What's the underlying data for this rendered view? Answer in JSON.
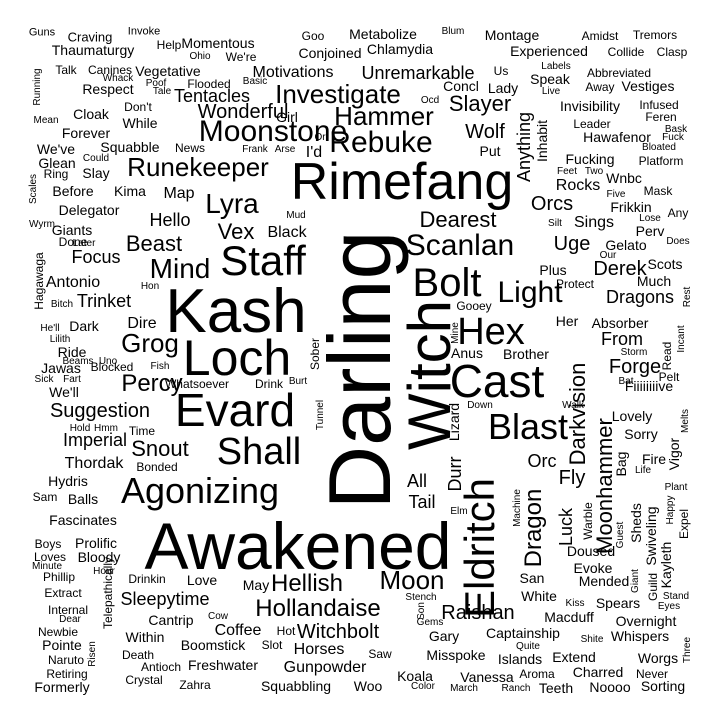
{
  "words": [
    {
      "text": "Awakened",
      "vertical": false
    },
    {
      "text": "Darling",
      "vertical": true
    },
    {
      "text": "Kash",
      "vertical": false
    },
    {
      "text": "Loch",
      "vertical": false
    },
    {
      "text": "Rimefang",
      "vertical": false
    },
    {
      "text": "Witch",
      "vertical": true
    },
    {
      "text": "Evard",
      "vertical": false
    },
    {
      "text": "Cast",
      "vertical": false
    },
    {
      "text": "Eldritch",
      "vertical": true
    },
    {
      "text": "Bolt",
      "vertical": false
    },
    {
      "text": "Staff",
      "vertical": false
    },
    {
      "text": "Shall",
      "vertical": false
    },
    {
      "text": "Hex",
      "vertical": false
    },
    {
      "text": "Agonizing",
      "vertical": false
    },
    {
      "text": "Blast",
      "vertical": false
    },
    {
      "text": "Rebuke",
      "vertical": false
    },
    {
      "text": "Scanlan",
      "vertical": false
    },
    {
      "text": "Moonstone",
      "vertical": false
    },
    {
      "text": "Hammer",
      "vertical": false
    },
    {
      "text": "Investigate",
      "vertical": false
    },
    {
      "text": "Mind",
      "vertical": false
    },
    {
      "text": "Lyra",
      "vertical": false
    },
    {
      "text": "Light",
      "vertical": false
    },
    {
      "text": "Runekeeper",
      "vertical": false
    },
    {
      "text": "Moon",
      "vertical": false
    },
    {
      "text": "Hellish",
      "vertical": false
    },
    {
      "text": "Hollandaise",
      "vertical": false
    },
    {
      "text": "Grog",
      "vertical": false
    },
    {
      "text": "Percy",
      "vertical": false
    },
    {
      "text": "Moonhammer",
      "vertical": true
    },
    {
      "text": "Dragon",
      "vertical": true
    },
    {
      "text": "Darkvision",
      "vertical": true
    },
    {
      "text": "Dearest",
      "vertical": false
    },
    {
      "text": "Beast",
      "vertical": false
    },
    {
      "text": "Vex",
      "vertical": false
    },
    {
      "text": "Snout",
      "vertical": false
    },
    {
      "text": "Suggestion",
      "vertical": false
    },
    {
      "text": "Wonderful",
      "vertical": false
    },
    {
      "text": "Slayer",
      "vertical": false
    },
    {
      "text": "Wolf",
      "vertical": false
    },
    {
      "text": "Derek",
      "vertical": false
    },
    {
      "text": "Uge",
      "vertical": false
    },
    {
      "text": "Forge",
      "vertical": false
    },
    {
      "text": "Fly",
      "vertical": false
    },
    {
      "text": "Orcs",
      "vertical": false
    },
    {
      "text": "Orc",
      "vertical": false
    },
    {
      "text": "Dragons",
      "vertical": false
    },
    {
      "text": "From",
      "vertical": false
    },
    {
      "text": "Witchbolt",
      "vertical": false
    },
    {
      "text": "Raishan",
      "vertical": false
    },
    {
      "text": "Sleepytime",
      "vertical": false
    },
    {
      "text": "Imperial",
      "vertical": false
    },
    {
      "text": "Thordak",
      "vertical": false
    },
    {
      "text": "Trinket",
      "vertical": false
    },
    {
      "text": "Focus",
      "vertical": false
    },
    {
      "text": "Hello",
      "vertical": false
    },
    {
      "text": "Unremarkable",
      "vertical": false
    },
    {
      "text": "Tentacles",
      "vertical": false
    },
    {
      "text": "Motivations",
      "vertical": false
    },
    {
      "text": "Anything",
      "vertical": true
    },
    {
      "text": "Luck",
      "vertical": true
    },
    {
      "text": "Durr",
      "vertical": true
    },
    {
      "text": "Tail",
      "vertical": false
    },
    {
      "text": "All",
      "vertical": false
    },
    {
      "text": "Hydris",
      "vertical": false
    },
    {
      "text": "Antonio",
      "vertical": false
    },
    {
      "text": "Giants",
      "vertical": false
    },
    {
      "text": "Dire",
      "vertical": false
    },
    {
      "text": "Black",
      "vertical": false
    },
    {
      "text": "Map",
      "vertical": false
    },
    {
      "text": "Kima",
      "vertical": false
    },
    {
      "text": "Delegator",
      "vertical": false
    },
    {
      "text": "Squabble",
      "vertical": false
    },
    {
      "text": "Cloak",
      "vertical": false
    },
    {
      "text": "Forever",
      "vertical": false
    },
    {
      "text": "Vegetative",
      "vertical": false
    },
    {
      "text": "Respect",
      "vertical": false
    },
    {
      "text": "Momentous",
      "vertical": false
    },
    {
      "text": "Conjoined",
      "vertical": false
    },
    {
      "text": "Chlamydia",
      "vertical": false
    },
    {
      "text": "Metabolize",
      "vertical": false
    },
    {
      "text": "Montage",
      "vertical": false
    },
    {
      "text": "Experienced",
      "vertical": false
    },
    {
      "text": "Thaumaturgy",
      "vertical": false
    },
    {
      "text": "Craving",
      "vertical": false
    },
    {
      "text": "Invoke",
      "vertical": false
    },
    {
      "text": "Help",
      "vertical": false
    },
    {
      "text": "Goo",
      "vertical": false
    },
    {
      "text": "Blum",
      "vertical": false
    },
    {
      "text": "Amidst",
      "vertical": false
    },
    {
      "text": "Tremors",
      "vertical": false
    },
    {
      "text": "Guns",
      "vertical": false
    },
    {
      "text": "Collide",
      "vertical": false
    },
    {
      "text": "Clasp",
      "vertical": false
    },
    {
      "text": "Speak",
      "vertical": false
    },
    {
      "text": "Abbreviated",
      "vertical": false
    },
    {
      "text": "Away",
      "vertical": false
    },
    {
      "text": "Vestiges",
      "vertical": false
    },
    {
      "text": "Invisibility",
      "vertical": false
    },
    {
      "text": "Infused",
      "vertical": false
    },
    {
      "text": "Leader",
      "vertical": false
    },
    {
      "text": "Feren",
      "vertical": false
    },
    {
      "text": "Hawafenor",
      "vertical": false
    },
    {
      "text": "Bask",
      "vertical": false
    },
    {
      "text": "Fucking",
      "vertical": false
    },
    {
      "text": "Wnbc",
      "vertical": false
    },
    {
      "text": "Platform",
      "vertical": false
    },
    {
      "text": "Bloated",
      "vertical": false
    },
    {
      "text": "Rocks",
      "vertical": false
    },
    {
      "text": "Mask",
      "vertical": false
    },
    {
      "text": "Frikkin",
      "vertical": false
    },
    {
      "text": "Sings",
      "vertical": false
    },
    {
      "text": "Perv",
      "vertical": false
    },
    {
      "text": "Gelato",
      "vertical": false
    },
    {
      "text": "Scots",
      "vertical": false
    },
    {
      "text": "Much",
      "vertical": false
    },
    {
      "text": "Absorber",
      "vertical": false
    },
    {
      "text": "Fiiiiiiiive",
      "vertical": false
    },
    {
      "text": "Lovely",
      "vertical": false
    },
    {
      "text": "Sorry",
      "vertical": false
    },
    {
      "text": "Fire",
      "vertical": false
    },
    {
      "text": "Plant",
      "vertical": false
    },
    {
      "text": "Vigor",
      "vertical": true
    },
    {
      "text": "Bag",
      "vertical": true
    },
    {
      "text": "Sheds",
      "vertical": true
    },
    {
      "text": "Swiveling",
      "vertical": true
    },
    {
      "text": "Kayleth",
      "vertical": true
    },
    {
      "text": "Expel",
      "vertical": true
    },
    {
      "text": "Guild",
      "vertical": true
    },
    {
      "text": "Doused",
      "vertical": false
    },
    {
      "text": "Evoke",
      "vertical": false
    },
    {
      "text": "Mended",
      "vertical": false
    },
    {
      "text": "Spears",
      "vertical": false
    },
    {
      "text": "Overnight",
      "vertical": false
    },
    {
      "text": "Whispers",
      "vertical": false
    },
    {
      "text": "Worgs",
      "vertical": false
    },
    {
      "text": "Never",
      "vertical": false
    },
    {
      "text": "Sorting",
      "vertical": false
    },
    {
      "text": "Noooo",
      "vertical": false
    },
    {
      "text": "Teeth",
      "vertical": false
    },
    {
      "text": "Charred",
      "vertical": false
    },
    {
      "text": "Extend",
      "vertical": false
    },
    {
      "text": "Aroma",
      "vertical": false
    },
    {
      "text": "Islands",
      "vertical": false
    },
    {
      "text": "Captainship",
      "vertical": false
    },
    {
      "text": "Macduff",
      "vertical": false
    },
    {
      "text": "White",
      "vertical": false
    },
    {
      "text": "San",
      "vertical": false
    },
    {
      "text": "Gary",
      "vertical": false
    },
    {
      "text": "Misspoke",
      "vertical": false
    },
    {
      "text": "Vanessa",
      "vertical": false
    },
    {
      "text": "Koala",
      "vertical": false
    },
    {
      "text": "Woo",
      "vertical": false
    },
    {
      "text": "Saw",
      "vertical": false
    },
    {
      "text": "Horses",
      "vertical": false
    },
    {
      "text": "Gunpowder",
      "vertical": false
    },
    {
      "text": "Squabbling",
      "vertical": false
    },
    {
      "text": "Freshwater",
      "vertical": false
    },
    {
      "text": "Boomstick",
      "vertical": false
    },
    {
      "text": "Coffee",
      "vertical": false
    },
    {
      "text": "Cantrip",
      "vertical": false
    },
    {
      "text": "Love",
      "vertical": false
    },
    {
      "text": "Drinkin",
      "vertical": false
    },
    {
      "text": "Within",
      "vertical": false
    },
    {
      "text": "Antioch",
      "vertical": false
    },
    {
      "text": "Crystal",
      "vertical": false
    },
    {
      "text": "Zahra",
      "vertical": false
    },
    {
      "text": "Death",
      "vertical": false
    },
    {
      "text": "Formerly",
      "vertical": false
    },
    {
      "text": "Naruto",
      "vertical": false
    },
    {
      "text": "Pointe",
      "vertical": false
    },
    {
      "text": "Newbie",
      "vertical": false
    },
    {
      "text": "Internal",
      "vertical": false
    },
    {
      "text": "Extract",
      "vertical": false
    },
    {
      "text": "Phillip",
      "vertical": false
    },
    {
      "text": "Loves",
      "vertical": false
    },
    {
      "text": "Bloody",
      "vertical": false
    },
    {
      "text": "Prolific",
      "vertical": false
    },
    {
      "text": "Fascinates",
      "vertical": false
    },
    {
      "text": "Balls",
      "vertical": false
    },
    {
      "text": "Bonded",
      "vertical": false
    },
    {
      "text": "Time",
      "vertical": false
    },
    {
      "text": "Whatsoever",
      "vertical": false
    },
    {
      "text": "Drink",
      "vertical": false
    },
    {
      "text": "Blocked",
      "vertical": false
    },
    {
      "text": "Jawas",
      "vertical": false
    },
    {
      "text": "We'll",
      "vertical": false
    },
    {
      "text": "Ride",
      "vertical": false
    },
    {
      "text": "Dark",
      "vertical": false
    },
    {
      "text": "Lilith",
      "vertical": false
    },
    {
      "text": "Hagawaga",
      "vertical": true
    },
    {
      "text": "Telepathically",
      "vertical": true
    },
    {
      "text": "Running",
      "vertical": true
    },
    {
      "text": "Talk",
      "vertical": false
    },
    {
      "text": "Canines",
      "vertical": false
    },
    {
      "text": "Mean",
      "vertical": false
    },
    {
      "text": "We've",
      "vertical": false
    },
    {
      "text": "Glean",
      "vertical": false
    },
    {
      "text": "Ring",
      "vertical": false
    },
    {
      "text": "Slay",
      "vertical": false
    },
    {
      "text": "Before",
      "vertical": false
    },
    {
      "text": "While",
      "vertical": false
    },
    {
      "text": "Don't",
      "vertical": false
    },
    {
      "text": "News",
      "vertical": false
    },
    {
      "text": "Girl",
      "vertical": false
    },
    {
      "text": "I'd",
      "vertical": false
    },
    {
      "text": "Put",
      "vertical": false
    },
    {
      "text": "Concl",
      "vertical": false
    },
    {
      "text": "Lady",
      "vertical": false
    },
    {
      "text": "Us",
      "vertical": false
    },
    {
      "text": "Live",
      "vertical": false
    },
    {
      "text": "Labels",
      "vertical": false
    },
    {
      "text": "Ocd",
      "vertical": false
    },
    {
      "text": "Inhabit",
      "vertical": true
    },
    {
      "text": "Plus",
      "vertical": false
    },
    {
      "text": "Protect",
      "vertical": false
    },
    {
      "text": "Gooey",
      "vertical": false
    },
    {
      "text": "Her",
      "vertical": false
    },
    {
      "text": "Anus",
      "vertical": false
    },
    {
      "text": "Brother",
      "vertical": false
    },
    {
      "text": "Walk",
      "vertical": false
    },
    {
      "text": "Down",
      "vertical": false
    },
    {
      "text": "Lizard",
      "vertical": true
    },
    {
      "text": "Mine",
      "vertical": true
    },
    {
      "text": "Sober",
      "vertical": true
    },
    {
      "text": "Tunnel",
      "vertical": true
    },
    {
      "text": "Machine",
      "vertical": true
    },
    {
      "text": "Warble",
      "vertical": true
    },
    {
      "text": "Storm",
      "vertical": false
    },
    {
      "text": "Read",
      "vertical": true
    },
    {
      "text": "Incant",
      "vertical": true
    },
    {
      "text": "Rest",
      "vertical": true
    },
    {
      "text": "Melts",
      "vertical": true
    },
    {
      "text": "Pelt",
      "vertical": false
    },
    {
      "text": "Bat",
      "vertical": false
    },
    {
      "text": "Happy",
      "vertical": true
    },
    {
      "text": "Life",
      "vertical": false
    },
    {
      "text": "Guest",
      "vertical": true
    },
    {
      "text": "Giant",
      "vertical": true
    },
    {
      "text": "Stand",
      "vertical": false
    },
    {
      "text": "Eyes",
      "vertical": false
    },
    {
      "text": "Three",
      "vertical": true
    },
    {
      "text": "Kiss",
      "vertical": false
    },
    {
      "text": "Shite",
      "vertical": false
    },
    {
      "text": "Quite",
      "vertical": false
    },
    {
      "text": "Stench",
      "vertical": false
    },
    {
      "text": "Gems",
      "vertical": false
    },
    {
      "text": "Son",
      "vertical": true
    },
    {
      "text": "Hot",
      "vertical": false
    },
    {
      "text": "Slot",
      "vertical": false
    },
    {
      "text": "Color",
      "vertical": false
    },
    {
      "text": "March",
      "vertical": false
    },
    {
      "text": "Ranch",
      "vertical": false
    },
    {
      "text": "Retiring",
      "vertical": false
    },
    {
      "text": "Risen",
      "vertical": true
    },
    {
      "text": "Dear",
      "vertical": false
    },
    {
      "text": "Cow",
      "vertical": false
    },
    {
      "text": "May",
      "vertical": false
    },
    {
      "text": "Hour",
      "vertical": false
    },
    {
      "text": "Minute",
      "vertical": false
    },
    {
      "text": "Boys",
      "vertical": false
    },
    {
      "text": "Sam",
      "vertical": false
    },
    {
      "text": "Hold",
      "vertical": false
    },
    {
      "text": "Hmm",
      "vertical": false
    },
    {
      "text": "Sick",
      "vertical": false
    },
    {
      "text": "Fart",
      "vertical": false
    },
    {
      "text": "Fish",
      "vertical": false
    },
    {
      "text": "Burt",
      "vertical": false
    },
    {
      "text": "He'll",
      "vertical": false
    },
    {
      "text": "Bitch",
      "vertical": false
    },
    {
      "text": "Hon",
      "vertical": false
    },
    {
      "text": "Later",
      "vertical": false
    },
    {
      "text": "Done",
      "vertical": false
    },
    {
      "text": "Wyrm",
      "vertical": false
    },
    {
      "text": "Scales",
      "vertical": true
    },
    {
      "text": "Could",
      "vertical": false
    },
    {
      "text": "Frank",
      "vertical": false
    },
    {
      "text": "Arse",
      "vertical": false
    },
    {
      "text": "Or",
      "vertical": false
    },
    {
      "text": "Mud",
      "vertical": false
    },
    {
      "text": "Whack",
      "vertical": false
    },
    {
      "text": "Poof",
      "vertical": false
    },
    {
      "text": "Tale",
      "vertical": false
    },
    {
      "text": "Flooded",
      "vertical": false
    },
    {
      "text": "Basic",
      "vertical": false
    },
    {
      "text": "Ohio",
      "vertical": false
    },
    {
      "text": "We're",
      "vertical": false
    },
    {
      "text": "Silt",
      "vertical": false
    },
    {
      "text": "Feet",
      "vertical": false
    },
    {
      "text": "Two",
      "vertical": false
    },
    {
      "text": "Five",
      "vertical": false
    },
    {
      "text": "Lose",
      "vertical": false
    },
    {
      "text": "Our",
      "vertical": false
    },
    {
      "text": "Any",
      "vertical": false
    },
    {
      "text": "Does",
      "vertical": false
    },
    {
      "text": "Fuck",
      "vertical": false
    },
    {
      "text": "Beams",
      "vertical": false
    },
    {
      "text": "Uno",
      "vertical": false
    },
    {
      "text": "Elm",
      "vertical": false
    }
  ]
}
